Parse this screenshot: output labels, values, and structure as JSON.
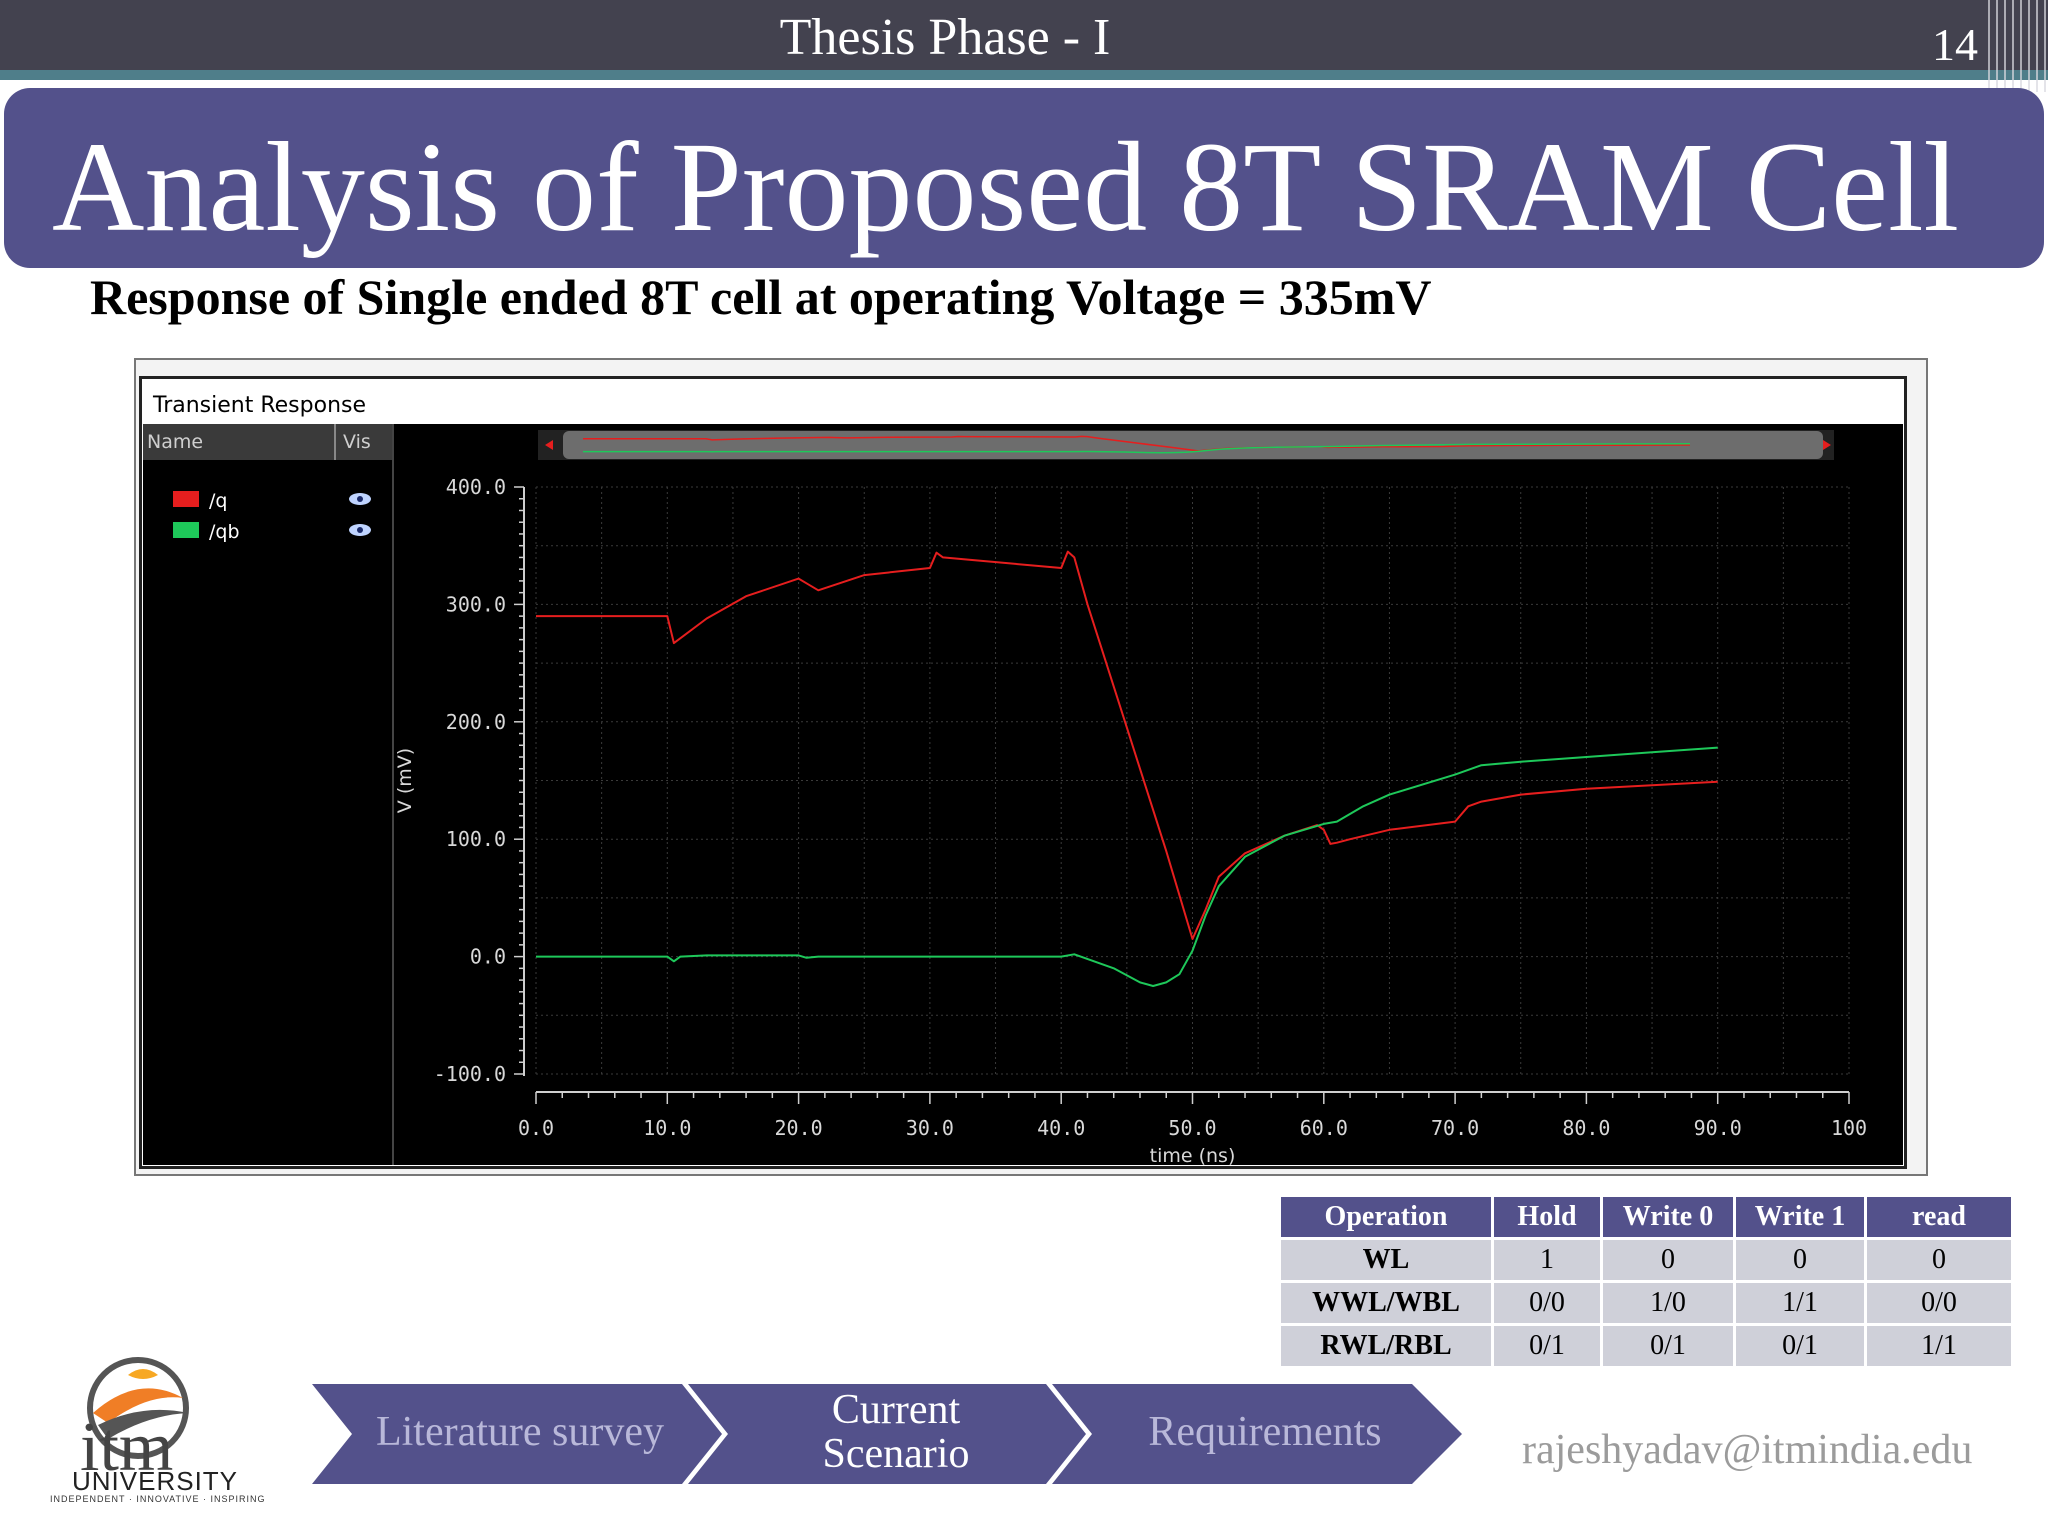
{
  "header": {
    "title": "Thesis Phase - I",
    "slide_number": "14"
  },
  "title": "Analysis of Proposed 8T SRAM Cell",
  "subtitle": "Response of Single ended 8T cell at operating Voltage = 335mV",
  "chart_panel": {
    "heading": "Transient Response",
    "col_name": "Name",
    "col_vis": "Vis",
    "signals": [
      {
        "label": "/q",
        "color": "#e61e1e"
      },
      {
        "label": "/qb",
        "color": "#1ec85a"
      }
    ]
  },
  "chart_data": {
    "type": "line",
    "xlabel": "time (ns)",
    "ylabel": "V (mV)",
    "xlim": [
      0,
      100
    ],
    "ylim": [
      -100,
      400
    ],
    "x_ticks": [
      "0.0",
      "10.0",
      "20.0",
      "30.0",
      "40.0",
      "50.0",
      "60.0",
      "70.0",
      "80.0",
      "90.0",
      "100"
    ],
    "y_ticks": [
      "-100.0",
      "0.0",
      "100.0",
      "200.0",
      "300.0",
      "400.0"
    ],
    "grid": true,
    "series": [
      {
        "name": "/q",
        "color": "#e61e1e",
        "x": [
          0,
          10,
          10.5,
          13,
          16,
          20,
          20.6,
          21.5,
          25,
          30,
          30.5,
          31,
          33,
          40,
          40.5,
          41,
          42,
          45,
          48,
          50,
          51,
          52,
          54,
          57,
          59.5,
          60,
          60.5,
          61,
          62,
          65,
          70,
          71,
          72,
          75,
          80,
          85,
          90
        ],
        "y": [
          290,
          290,
          267,
          288,
          307,
          322,
          318,
          312,
          325,
          331,
          344,
          340,
          338,
          331,
          345,
          340,
          300,
          195,
          90,
          15,
          40,
          68,
          88,
          103,
          112,
          108,
          96,
          97,
          100,
          108,
          115,
          128,
          132,
          138,
          143,
          146,
          149
        ]
      },
      {
        "name": "/qb",
        "color": "#1ec85a",
        "x": [
          0,
          10,
          10.5,
          11,
          13,
          20,
          20.6,
          21.5,
          30,
          40,
          41,
          44,
          46,
          47,
          48,
          49,
          50,
          51,
          52,
          54,
          57,
          60,
          61,
          63,
          65,
          70,
          72,
          75,
          80,
          85,
          90
        ],
        "y": [
          0,
          0,
          -4,
          0,
          1,
          1,
          -1,
          0,
          0,
          0,
          2,
          -10,
          -22,
          -25,
          -22,
          -15,
          5,
          35,
          60,
          85,
          103,
          113,
          115,
          128,
          138,
          155,
          163,
          166,
          170,
          174,
          178
        ]
      }
    ]
  },
  "table": {
    "headers": [
      "Operation",
      "Hold",
      "Write 0",
      "Write 1",
      "read"
    ],
    "rows": [
      [
        "WL",
        "1",
        "0",
        "0",
        "0"
      ],
      [
        "WWL/WBL",
        "0/0",
        "1/0",
        "1/1",
        "0/0"
      ],
      [
        "RWL/RBL",
        "0/1",
        "0/1",
        "0/1",
        "1/1"
      ]
    ]
  },
  "logo": {
    "word": "itm",
    "university": "UNIVERSITY",
    "tagline": "INDEPENDENT · INNOVATIVE · INSPIRING"
  },
  "nav": {
    "items": [
      {
        "line1": "Literature survey",
        "line2": ""
      },
      {
        "line1": "Current",
        "line2": "Scenario"
      },
      {
        "line1": "Requirements",
        "line2": ""
      }
    ],
    "colors": {
      "fill": "#53518b",
      "inactive_text": "#b9b8d9",
      "active_text": "#ffffff"
    }
  },
  "email": "rajeshyadav@itmindia.edu"
}
